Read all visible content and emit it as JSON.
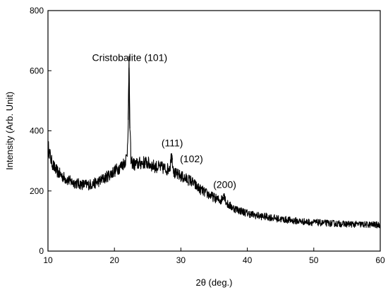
{
  "chart_data": {
    "type": "line",
    "title": "",
    "xlabel": "2θ (deg.)",
    "ylabel": "Intensity (Arb. Unit)",
    "xlim": [
      10,
      60
    ],
    "ylim": [
      0,
      800
    ],
    "x_ticks": [
      10,
      20,
      30,
      40,
      50,
      60
    ],
    "y_ticks": [
      0,
      200,
      400,
      600,
      800
    ],
    "grid": false,
    "legend": "none",
    "series": [
      {
        "color": "#000000",
        "x": [
          10,
          10.5,
          11,
          11.5,
          12,
          12.5,
          13,
          13.5,
          14,
          14.5,
          15,
          15.5,
          16,
          16.5,
          17,
          17.5,
          18,
          18.5,
          19,
          19.5,
          20,
          20.5,
          21,
          21.5,
          21.9,
          22.1,
          22.2,
          22.3,
          22.5,
          23,
          23.5,
          24,
          24.5,
          25,
          25.5,
          26,
          26.5,
          27,
          27.5,
          28,
          28.4,
          28.6,
          28.8,
          29,
          29.5,
          30,
          30.5,
          31,
          31.5,
          32,
          32.5,
          33,
          33.5,
          34,
          34.5,
          35,
          35.5,
          36,
          36.3,
          36.5,
          36.7,
          37,
          37.5,
          38,
          38.5,
          39,
          39.5,
          40,
          40.5,
          41,
          41.5,
          42,
          42.5,
          43,
          43.5,
          44,
          44.5,
          45,
          45.5,
          46,
          46.5,
          47,
          47.5,
          48,
          48.5,
          49,
          49.5,
          50,
          50.5,
          51,
          51.5,
          52,
          52.5,
          53,
          53.5,
          54,
          54.5,
          55,
          55.5,
          56,
          56.5,
          57,
          57.5,
          58,
          58.5,
          59,
          59.5,
          60
        ],
        "y": [
          350,
          300,
          275,
          262,
          252,
          243,
          236,
          231,
          227,
          224,
          222,
          221,
          221,
          222,
          225,
          230,
          236,
          242,
          250,
          258,
          266,
          274,
          282,
          295,
          315,
          450,
          610,
          420,
          300,
          287,
          290,
          293,
          295,
          293,
          287,
          282,
          280,
          278,
          275,
          272,
          285,
          325,
          290,
          258,
          254,
          249,
          243,
          238,
          234,
          223,
          212,
          204,
          197,
          190,
          184,
          178,
          172,
          168,
          178,
          192,
          170,
          156,
          149,
          142,
          138,
          134,
          130,
          126,
          123,
          120,
          118,
          116,
          115,
          114,
          112,
          110,
          108,
          106,
          105,
          104,
          102,
          101,
          100,
          99,
          98,
          97,
          96,
          95,
          95,
          94,
          93,
          93,
          92,
          92,
          91,
          91,
          90,
          90,
          90,
          89,
          89,
          89,
          88,
          88,
          88,
          88,
          87,
          87
        ]
      }
    ],
    "annotations": [
      {
        "text": "Cristobalite (101)",
        "x": 22.3,
        "y": 632
      },
      {
        "text": "(111)",
        "x": 28.7,
        "y": 348
      },
      {
        "text": "(102)",
        "x": 31.6,
        "y": 296
      },
      {
        "text": "(200)",
        "x": 36.6,
        "y": 210
      }
    ]
  }
}
